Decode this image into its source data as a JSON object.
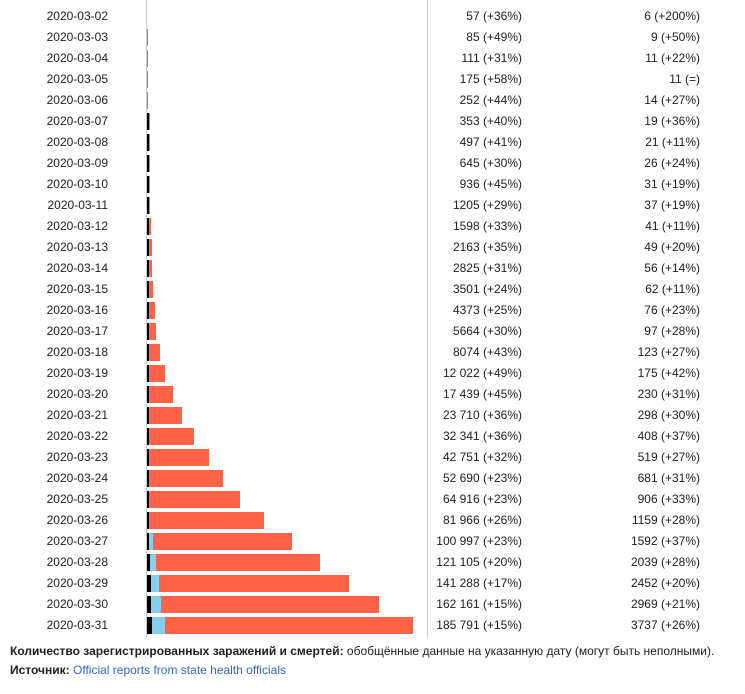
{
  "chart_data": {
    "type": "bar",
    "stacked": true,
    "orientation": "horizontal",
    "categories": [
      "2020-03-02",
      "2020-03-03",
      "2020-03-04",
      "2020-03-05",
      "2020-03-06",
      "2020-03-07",
      "2020-03-08",
      "2020-03-09",
      "2020-03-10",
      "2020-03-11",
      "2020-03-12",
      "2020-03-13",
      "2020-03-14",
      "2020-03-15",
      "2020-03-16",
      "2020-03-17",
      "2020-03-18",
      "2020-03-19",
      "2020-03-20",
      "2020-03-21",
      "2020-03-22",
      "2020-03-23",
      "2020-03-24",
      "2020-03-25",
      "2020-03-26",
      "2020-03-27",
      "2020-03-28",
      "2020-03-29",
      "2020-03-30",
      "2020-03-31"
    ],
    "cases": [
      57,
      85,
      111,
      175,
      252,
      353,
      497,
      645,
      936,
      1205,
      1598,
      2163,
      2825,
      3501,
      4373,
      5664,
      8074,
      12022,
      17439,
      23710,
      32341,
      42751,
      52690,
      64916,
      81966,
      100997,
      121105,
      141288,
      162161,
      185791
    ],
    "deaths": [
      6,
      9,
      11,
      11,
      14,
      19,
      21,
      26,
      31,
      37,
      41,
      49,
      56,
      62,
      76,
      97,
      123,
      175,
      230,
      298,
      408,
      519,
      681,
      906,
      1159,
      1592,
      2039,
      2452,
      2969,
      3737
    ],
    "recovered_estimate": [
      0,
      0,
      0,
      0,
      0,
      0,
      0,
      0,
      0,
      0,
      0,
      0,
      0,
      0,
      0,
      0,
      0,
      0,
      0,
      0,
      0,
      0,
      0,
      0,
      0,
      2500,
      4500,
      6000,
      7000,
      9000
    ],
    "cases_labels": [
      "57 (+36%)",
      "85 (+49%)",
      "111 (+31%)",
      "175 (+58%)",
      "252 (+44%)",
      "353 (+40%)",
      "497 (+41%)",
      "645 (+30%)",
      "936 (+45%)",
      "1205 (+29%)",
      "1598 (+33%)",
      "2163 (+35%)",
      "2825 (+31%)",
      "3501 (+24%)",
      "4373 (+25%)",
      "5664 (+30%)",
      "8074 (+43%)",
      "12 022 (+49%)",
      "17 439 (+45%)",
      "23 710 (+36%)",
      "32 341 (+36%)",
      "42 751 (+32%)",
      "52 690 (+23%)",
      "64 916 (+23%)",
      "81 966 (+26%)",
      "100 997 (+23%)",
      "121 105 (+20%)",
      "141 288 (+17%)",
      "162 161 (+15%)",
      "185 791 (+15%)"
    ],
    "deaths_labels": [
      "6 (+200%)",
      "9 (+50%)",
      "11 (+22%)",
      "11 (=)",
      "14 (+27%)",
      "19 (+36%)",
      "21 (+11%)",
      "26 (+24%)",
      "31 (+19%)",
      "37 (+19%)",
      "41 (+11%)",
      "49 (+20%)",
      "56 (+14%)",
      "62 (+11%)",
      "76 (+23%)",
      "97 (+28%)",
      "123 (+27%)",
      "175 (+42%)",
      "230 (+31%)",
      "298 (+30%)",
      "408 (+37%)",
      "519 (+27%)",
      "681 (+31%)",
      "906 (+33%)",
      "1159 (+28%)",
      "1592 (+37%)",
      "2039 (+28%)",
      "2452 (+20%)",
      "2969 (+21%)",
      "3737 (+26%)"
    ],
    "xlim": [
      0,
      185791
    ],
    "colors": {
      "deaths": "#000000",
      "recovered": "#87ceeb",
      "active": "#ff6347"
    }
  },
  "caption": {
    "title_bold": "Количество зарегистрированных заражений и смертей:",
    "title_rest": " обобщённые данные на указанную дату (могут быть неполными).",
    "source_label": "Источник:",
    "source_link": "Official reports from state health officials"
  }
}
